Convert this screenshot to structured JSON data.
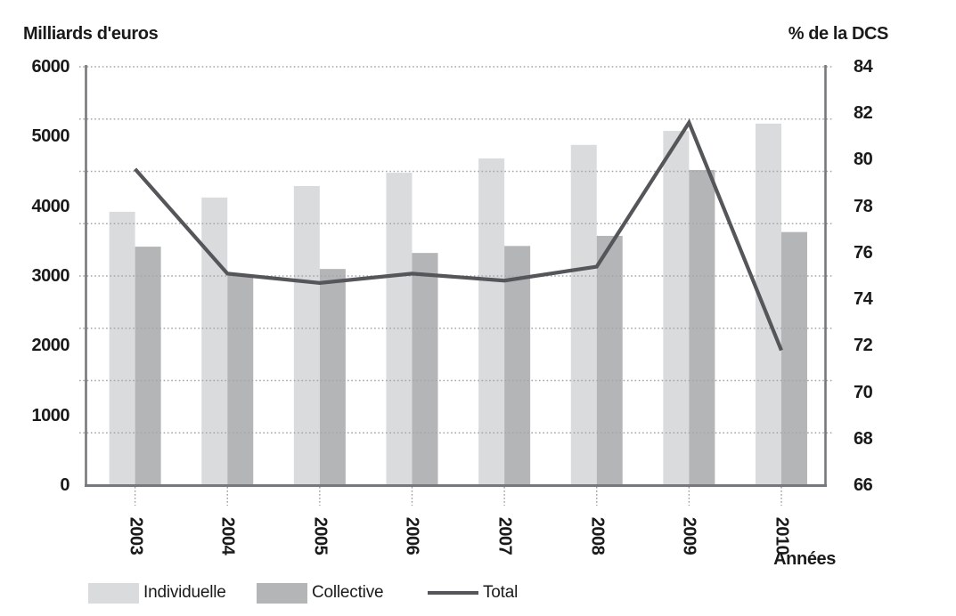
{
  "figure": {
    "background": "#ffffff"
  },
  "chart_data": {
    "type": "combo-bar-line",
    "categories": [
      "2003",
      "2004",
      "2005",
      "2006",
      "2007",
      "2008",
      "2009",
      "2010"
    ],
    "series": [
      {
        "name": "Individuelle",
        "type": "bar",
        "axis": "left",
        "values": [
          3920,
          4125,
          4290,
          4480,
          4685,
          4880,
          5080,
          5185
        ]
      },
      {
        "name": "Collective",
        "type": "bar",
        "axis": "left",
        "values": [
          3420,
          3015,
          3100,
          3330,
          3430,
          3575,
          4520,
          3630
        ]
      },
      {
        "name": "Total",
        "type": "line",
        "axis": "right",
        "values": [
          79.6,
          75.1,
          74.7,
          75.1,
          74.8,
          75.4,
          81.6,
          71.8
        ]
      }
    ],
    "left_axis": {
      "title": "Milliards d'euros",
      "min": 0,
      "max": 6000,
      "ticks": [
        "6000",
        "5000",
        "4000",
        "3000",
        "2000",
        "1000",
        "0"
      ]
    },
    "right_axis": {
      "title": "% de la DCS",
      "min": 66,
      "max": 84,
      "ticks": [
        "84",
        "82",
        "80",
        "78",
        "76",
        "74",
        "72",
        "70",
        "68",
        "66"
      ]
    },
    "x_axis": {
      "title": "Années",
      "labels_rotated_90deg": true
    },
    "grid": {
      "horizontal_divisions": 8,
      "style": "dotted"
    },
    "legend": {
      "position": "bottom",
      "items": [
        "Individuelle",
        "Collective",
        "Total"
      ]
    }
  },
  "colors": {
    "bar_individuelle": "#dadbdd",
    "bar_collective": "#b3b5b7",
    "line_total": "#54565a",
    "axis_line": "#76787b",
    "gridline": "#a4a6a9",
    "tick_stub": "#9a9c9f",
    "text": "#1a1a1a"
  }
}
